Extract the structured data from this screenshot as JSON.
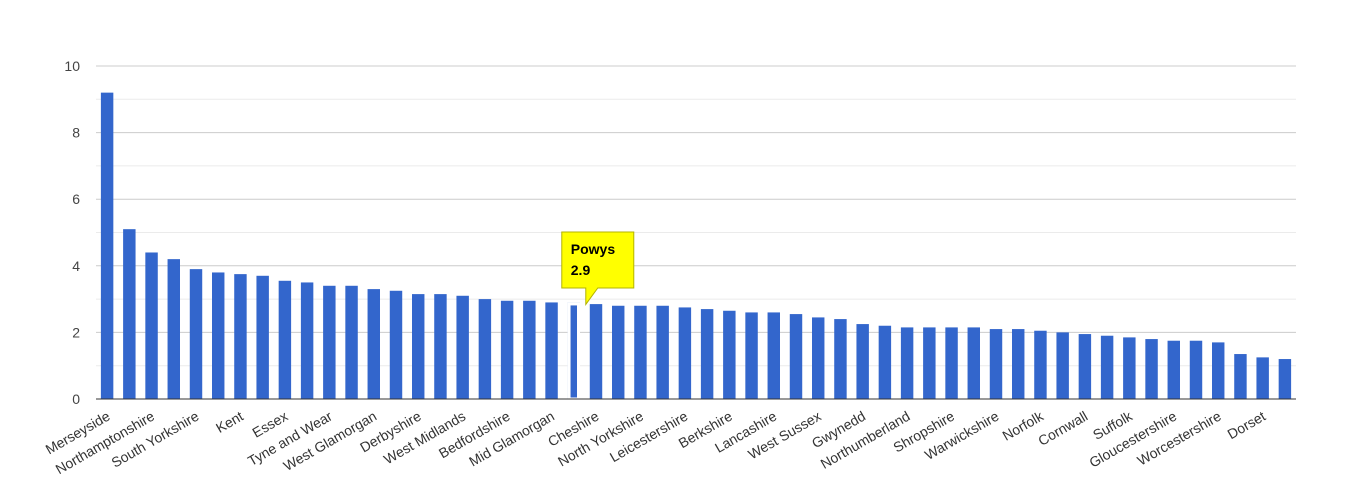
{
  "chart_data": {
    "type": "bar",
    "title": "",
    "xlabel": "",
    "ylabel": "",
    "ylim": [
      0,
      10
    ],
    "yticks": [
      0,
      2,
      4,
      6,
      8,
      10
    ],
    "grid": true,
    "bar_color": "#3366cc",
    "highlight_color": "#ffff00",
    "categories": [
      "Merseyside",
      "",
      "Northamptonshire",
      "",
      "South Yorkshire",
      "",
      "Kent",
      "",
      "Essex",
      "",
      "Tyne and Wear",
      "",
      "West Glamorgan",
      "",
      "Derbyshire",
      "",
      "West Midlands",
      "",
      "Bedfordshire",
      "",
      "Mid Glamorgan",
      "",
      "Cheshire",
      "",
      "North Yorkshire",
      "",
      "Leicestershire",
      "",
      "Berkshire",
      "",
      "Lancashire",
      "",
      "West Sussex",
      "",
      "Gwynedd",
      "",
      "Northumberland",
      "",
      "Shropshire",
      "",
      "Warwickshire",
      "",
      "Norfolk",
      "",
      "Cornwall",
      "",
      "Suffolk",
      "",
      "Gloucestershire",
      "",
      "Worcestershire",
      "",
      "Dorset",
      ""
    ],
    "values": [
      9.2,
      5.1,
      4.4,
      4.2,
      3.9,
      3.8,
      3.75,
      3.7,
      3.55,
      3.5,
      3.4,
      3.4,
      3.3,
      3.25,
      3.15,
      3.15,
      3.1,
      3.0,
      2.95,
      2.95,
      2.9,
      2.9,
      2.85,
      2.8,
      2.8,
      2.8,
      2.75,
      2.7,
      2.65,
      2.6,
      2.6,
      2.55,
      2.45,
      2.4,
      2.25,
      2.2,
      2.15,
      2.15,
      2.15,
      2.15,
      2.1,
      2.1,
      2.05,
      2.0,
      1.95,
      1.9,
      1.85,
      1.8,
      1.75,
      1.75,
      1.7,
      1.35,
      1.25,
      1.2
    ],
    "highlight": {
      "index": 21,
      "label": "Powys",
      "value": "2.9"
    }
  }
}
